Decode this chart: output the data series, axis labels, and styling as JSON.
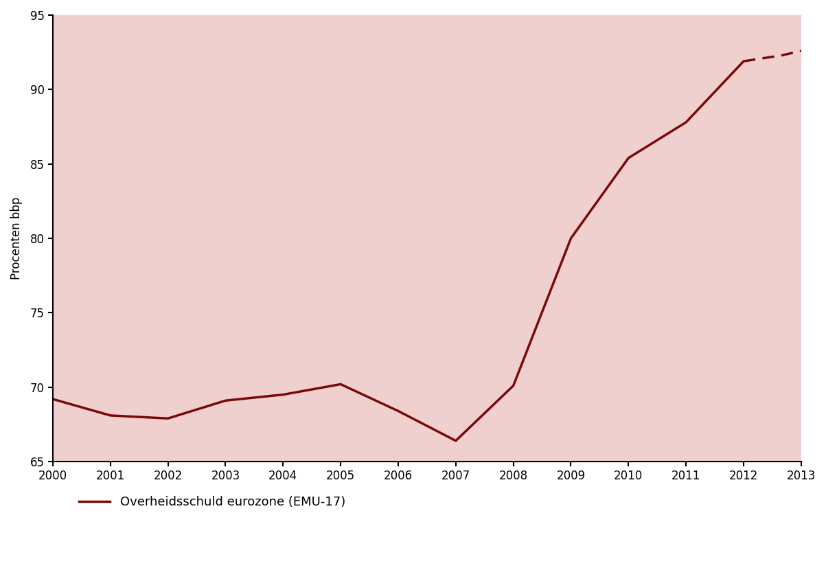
{
  "ylabel": "Procenten bbp",
  "plot_bg_color": "#f0d0cf",
  "fig_bg_color": "#ffffff",
  "line_color": "#7a0808",
  "ylim": [
    65,
    95
  ],
  "yticks": [
    65,
    70,
    75,
    80,
    85,
    90,
    95
  ],
  "solid_years": [
    2000,
    2001,
    2002,
    2003,
    2004,
    2005,
    2006,
    2007,
    2008,
    2009,
    2010,
    2011,
    2012
  ],
  "solid_values": [
    69.2,
    68.1,
    67.9,
    69.1,
    69.5,
    70.2,
    68.4,
    66.4,
    70.1,
    80.0,
    85.4,
    87.8,
    91.9
  ],
  "dashed_years": [
    2012,
    2012.33,
    2012.67,
    2013
  ],
  "dashed_values": [
    91.9,
    92.1,
    92.3,
    92.6
  ],
  "legend_label": "Overheidsschuld eurozone (EMU-17)",
  "xtick_labels": [
    "2000",
    "2001",
    "2002",
    "2003",
    "2004",
    "2005",
    "2006",
    "2007",
    "2008",
    "2009",
    "2010",
    "2011",
    "2012",
    "2013"
  ],
  "xtick_values": [
    2000,
    2001,
    2002,
    2003,
    2004,
    2005,
    2006,
    2007,
    2008,
    2009,
    2010,
    2011,
    2012,
    2013
  ],
  "spine_color": "#000000",
  "line_width": 2.5,
  "tick_fontsize": 12,
  "label_fontsize": 12,
  "legend_fontsize": 13
}
